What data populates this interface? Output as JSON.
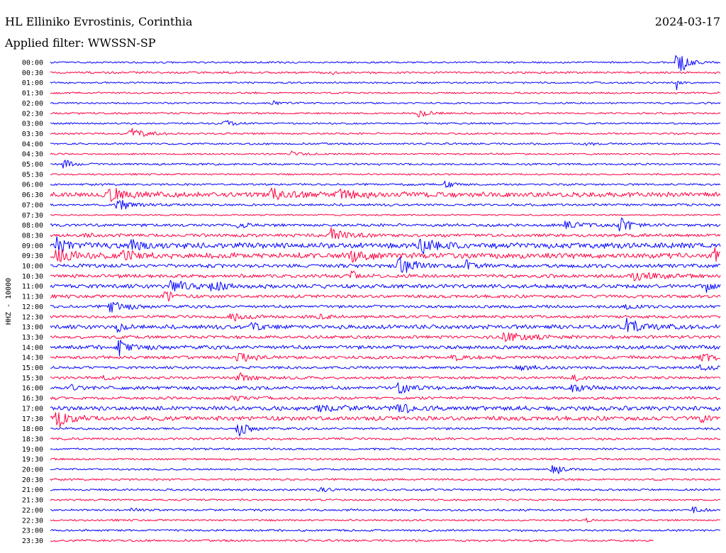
{
  "header": {
    "station": "HL Elliniko Evrostinis, Corinthia",
    "date": "2024-03-17",
    "filter": "Applied filter: WWSSN-SP"
  },
  "chart_data": {
    "type": "line",
    "title": "HL Elliniko Evrostinis, Corinthia",
    "subtitle": "Applied filter: WWSSN-SP",
    "date": "2024-03-17",
    "ylabel": "HHZ - 10000",
    "trace_colors": [
      "#0000ff",
      "#ff0040"
    ],
    "row_minutes": 30,
    "rows": [
      {
        "time": "00:00",
        "noise": 1.2,
        "events": [
          [
            0.935,
            28,
            0.012
          ]
        ]
      },
      {
        "time": "00:30",
        "noise": 1.4,
        "events": [
          [
            0.42,
            8,
            0.002
          ]
        ]
      },
      {
        "time": "01:00",
        "noise": 1.2,
        "events": [
          [
            0.935,
            8,
            0.006
          ]
        ]
      },
      {
        "time": "01:30",
        "noise": 1.2,
        "events": []
      },
      {
        "time": "02:00",
        "noise": 1.2,
        "events": [
          [
            0.33,
            3,
            0.012
          ]
        ]
      },
      {
        "time": "02:30",
        "noise": 1.3,
        "events": [
          [
            0.55,
            6,
            0.015
          ]
        ]
      },
      {
        "time": "03:00",
        "noise": 1.2,
        "events": [
          [
            0.26,
            6,
            0.012
          ]
        ]
      },
      {
        "time": "03:30",
        "noise": 1.3,
        "events": [
          [
            0.12,
            8,
            0.02
          ]
        ]
      },
      {
        "time": "04:00",
        "noise": 1.3,
        "events": [
          [
            0.8,
            2,
            0.015
          ]
        ]
      },
      {
        "time": "04:30",
        "noise": 1.2,
        "events": [
          [
            0.36,
            3,
            0.02
          ]
        ]
      },
      {
        "time": "05:00",
        "noise": 1.4,
        "events": [
          [
            0.02,
            7,
            0.012
          ]
        ]
      },
      {
        "time": "05:30",
        "noise": 1.2,
        "events": []
      },
      {
        "time": "06:00",
        "noise": 1.4,
        "events": [
          [
            0.59,
            8,
            0.01
          ]
        ]
      },
      {
        "time": "06:30",
        "noise": 3.5,
        "events": [
          [
            0.09,
            10,
            0.02
          ],
          [
            0.33,
            7,
            0.03
          ],
          [
            0.43,
            8,
            0.03
          ]
        ]
      },
      {
        "time": "07:00",
        "noise": 1.6,
        "events": [
          [
            0.1,
            8,
            0.02
          ]
        ]
      },
      {
        "time": "07:30",
        "noise": 1.0,
        "events": []
      },
      {
        "time": "08:00",
        "noise": 2.0,
        "events": [
          [
            0.28,
            5,
            0.01
          ],
          [
            0.77,
            7,
            0.02
          ],
          [
            0.85,
            13,
            0.015
          ]
        ]
      },
      {
        "time": "08:30",
        "noise": 2.2,
        "events": [
          [
            0.42,
            10,
            0.02
          ],
          [
            0.05,
            5,
            0.01
          ]
        ]
      },
      {
        "time": "09:00",
        "noise": 3.8,
        "events": [
          [
            0.01,
            10,
            0.02
          ],
          [
            0.55,
            9,
            0.03
          ],
          [
            0.12,
            7,
            0.02
          ]
        ]
      },
      {
        "time": "09:30",
        "noise": 3.8,
        "events": [
          [
            0.01,
            10,
            0.02
          ],
          [
            0.45,
            12,
            0.015
          ],
          [
            0.11,
            8,
            0.02
          ],
          [
            0.99,
            8,
            0.01
          ]
        ]
      },
      {
        "time": "10:00",
        "noise": 2.6,
        "events": [
          [
            0.52,
            14,
            0.02
          ],
          [
            0.62,
            8,
            0.01
          ]
        ]
      },
      {
        "time": "10:30",
        "noise": 2.4,
        "events": [
          [
            0.45,
            8,
            0.01
          ],
          [
            0.87,
            8,
            0.03
          ]
        ]
      },
      {
        "time": "11:00",
        "noise": 2.8,
        "events": [
          [
            0.18,
            10,
            0.02
          ],
          [
            0.24,
            10,
            0.015
          ],
          [
            0.98,
            8,
            0.01
          ]
        ]
      },
      {
        "time": "11:30",
        "noise": 2.2,
        "events": [
          [
            0.17,
            12,
            0.01
          ]
        ]
      },
      {
        "time": "12:00",
        "noise": 2.0,
        "events": [
          [
            0.09,
            10,
            0.02
          ],
          [
            0.86,
            5,
            0.01
          ]
        ]
      },
      {
        "time": "12:30",
        "noise": 2.0,
        "events": [
          [
            0.27,
            6,
            0.02
          ],
          [
            0.4,
            6,
            0.01
          ]
        ]
      },
      {
        "time": "13:00",
        "noise": 2.8,
        "events": [
          [
            0.1,
            8,
            0.01
          ],
          [
            0.3,
            10,
            0.01
          ],
          [
            0.86,
            9,
            0.03
          ]
        ]
      },
      {
        "time": "13:30",
        "noise": 2.2,
        "events": [
          [
            0.68,
            6,
            0.04
          ]
        ]
      },
      {
        "time": "14:00",
        "noise": 2.6,
        "events": [
          [
            0.1,
            10,
            0.02
          ]
        ]
      },
      {
        "time": "14:30",
        "noise": 2.2,
        "events": [
          [
            0.28,
            9,
            0.015
          ],
          [
            0.6,
            7,
            0.01
          ],
          [
            0.97,
            6,
            0.02
          ]
        ]
      },
      {
        "time": "15:00",
        "noise": 1.8,
        "events": [
          [
            0.7,
            3,
            0.03
          ],
          [
            0.97,
            4,
            0.02
          ]
        ]
      },
      {
        "time": "15:30",
        "noise": 1.8,
        "events": [
          [
            0.08,
            5,
            0.01
          ],
          [
            0.28,
            6,
            0.02
          ],
          [
            0.78,
            7,
            0.01
          ]
        ]
      },
      {
        "time": "16:00",
        "noise": 2.4,
        "events": [
          [
            0.52,
            7,
            0.02
          ],
          [
            0.03,
            5,
            0.01
          ],
          [
            0.78,
            6,
            0.02
          ]
        ]
      },
      {
        "time": "16:30",
        "noise": 2.0,
        "events": [
          [
            0.27,
            4,
            0.02
          ]
        ]
      },
      {
        "time": "17:00",
        "noise": 3.0,
        "events": [
          [
            0.52,
            8,
            0.02
          ],
          [
            0.4,
            4,
            0.03
          ]
        ]
      },
      {
        "time": "17:30",
        "noise": 3.0,
        "events": [
          [
            0.01,
            16,
            0.015
          ],
          [
            0.97,
            6,
            0.01
          ]
        ]
      },
      {
        "time": "18:00",
        "noise": 1.6,
        "events": [
          [
            0.28,
            11,
            0.015
          ]
        ]
      },
      {
        "time": "18:30",
        "noise": 1.6,
        "events": []
      },
      {
        "time": "19:00",
        "noise": 1.4,
        "events": []
      },
      {
        "time": "19:30",
        "noise": 1.4,
        "events": []
      },
      {
        "time": "20:00",
        "noise": 1.3,
        "events": [
          [
            0.75,
            9,
            0.015
          ]
        ]
      },
      {
        "time": "20:30",
        "noise": 1.4,
        "events": []
      },
      {
        "time": "21:00",
        "noise": 1.4,
        "events": [
          [
            0.4,
            6,
            0.01
          ]
        ]
      },
      {
        "time": "21:30",
        "noise": 1.3,
        "events": []
      },
      {
        "time": "22:00",
        "noise": 1.4,
        "events": [
          [
            0.12,
            3,
            0.01
          ],
          [
            0.96,
            7,
            0.01
          ]
        ]
      },
      {
        "time": "22:30",
        "noise": 1.3,
        "events": [
          [
            0.8,
            5,
            0.004
          ]
        ]
      },
      {
        "time": "23:00",
        "noise": 1.4,
        "events": []
      },
      {
        "time": "23:30",
        "noise": 1.4,
        "events": []
      }
    ],
    "last_row_fraction": 0.9
  }
}
